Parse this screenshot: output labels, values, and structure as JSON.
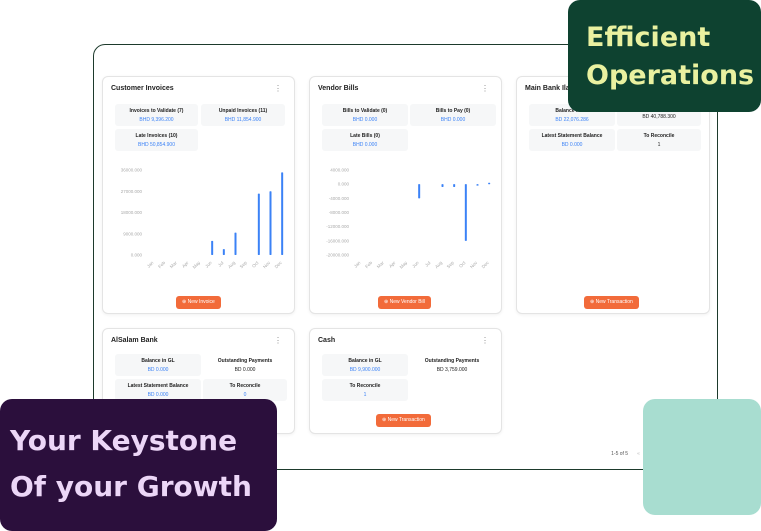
{
  "overlays": {
    "top_right": "Efficient Operations",
    "bottom_left_1": "Your Keystone",
    "bottom_left_2": "Of your Growth"
  },
  "colors": {
    "accent": "#f26b3a",
    "bar": "#3b82f6",
    "green": "#0e4230",
    "purple": "#2b0f3c",
    "mint": "#a8ddd0"
  },
  "cards": {
    "customer_invoices": {
      "title": "Customer Invoices",
      "stats": [
        {
          "label": "Invoices to Validate (7)",
          "value": "BHD 9,396.200"
        },
        {
          "label": "Unpaid Invoices (11)",
          "value": "BHD 11,854.900"
        },
        {
          "label": "Late Invoices (10)",
          "value": "BHD 50,854.900"
        }
      ],
      "button": "New Invoice"
    },
    "vendor_bills": {
      "title": "Vendor Bills",
      "stats": [
        {
          "label": "Bills to Validate (0)",
          "value": "BHD 0.000"
        },
        {
          "label": "Bills to Pay (0)",
          "value": "BHD 0.000"
        },
        {
          "label": "Late Bills (0)",
          "value": "BHD 0.000"
        }
      ],
      "button": "New Vendor Bill"
    },
    "main_bank": {
      "title": "Main Bank Ila",
      "stats": [
        {
          "label": "Balance in GL",
          "value": "BD 22,076.286"
        },
        {
          "label": "",
          "value": "BD 40,788.300"
        },
        {
          "label": "Latest Statement Balance",
          "value": "BD 0.000"
        },
        {
          "label": "To Reconcile",
          "value": "1"
        }
      ],
      "button": "New Transaction"
    },
    "alsalam": {
      "title": "AlSalam Bank",
      "stats": [
        {
          "label": "Balance in GL",
          "value": "BD 0.000"
        },
        {
          "label": "Outstanding Payments",
          "value": "BD 0.000"
        },
        {
          "label": "Latest Statement Balance",
          "value": "BD 0.000"
        },
        {
          "label": "To Reconcile",
          "value": "0"
        }
      ]
    },
    "cash": {
      "title": "Cash",
      "stats": [
        {
          "label": "Balance in GL",
          "value": "BD 9,900.000"
        },
        {
          "label": "Outstanding Payments",
          "value": "BD 3,759.000"
        },
        {
          "label": "To Reconcile",
          "value": "1"
        }
      ],
      "button": "New Transaction"
    }
  },
  "pagination": {
    "range": "1-5 of 5",
    "current": "1"
  },
  "chart_data": [
    {
      "type": "bar",
      "title": "",
      "categories": [
        "Jan",
        "Feb",
        "Mar",
        "Apr",
        "May",
        "Jun",
        "Jul",
        "Aug",
        "Sep",
        "Oct",
        "Nov",
        "Dec"
      ],
      "values": [
        0,
        0,
        0,
        0,
        0,
        6000,
        2500,
        9500,
        0,
        26000,
        27000,
        35000
      ],
      "yticks": [
        "36000.000",
        "27000.000",
        "18000.000",
        "9000.000",
        "0.000"
      ],
      "ylim": [
        0,
        36000
      ]
    },
    {
      "type": "bar",
      "title": "",
      "categories": [
        "Jan",
        "Feb",
        "Mar",
        "Apr",
        "May",
        "Jun",
        "Jul",
        "Aug",
        "Sep",
        "Oct",
        "Nov",
        "Dec"
      ],
      "values": [
        0,
        0,
        0,
        0,
        0,
        -4000,
        0,
        -800,
        -800,
        -16000,
        -400,
        400
      ],
      "yticks": [
        "4000.000",
        "0.000",
        "-4000.000",
        "-8000.000",
        "-12000.000",
        "-16000.000",
        "-20000.000"
      ],
      "ylim": [
        -20000,
        4000
      ]
    }
  ]
}
